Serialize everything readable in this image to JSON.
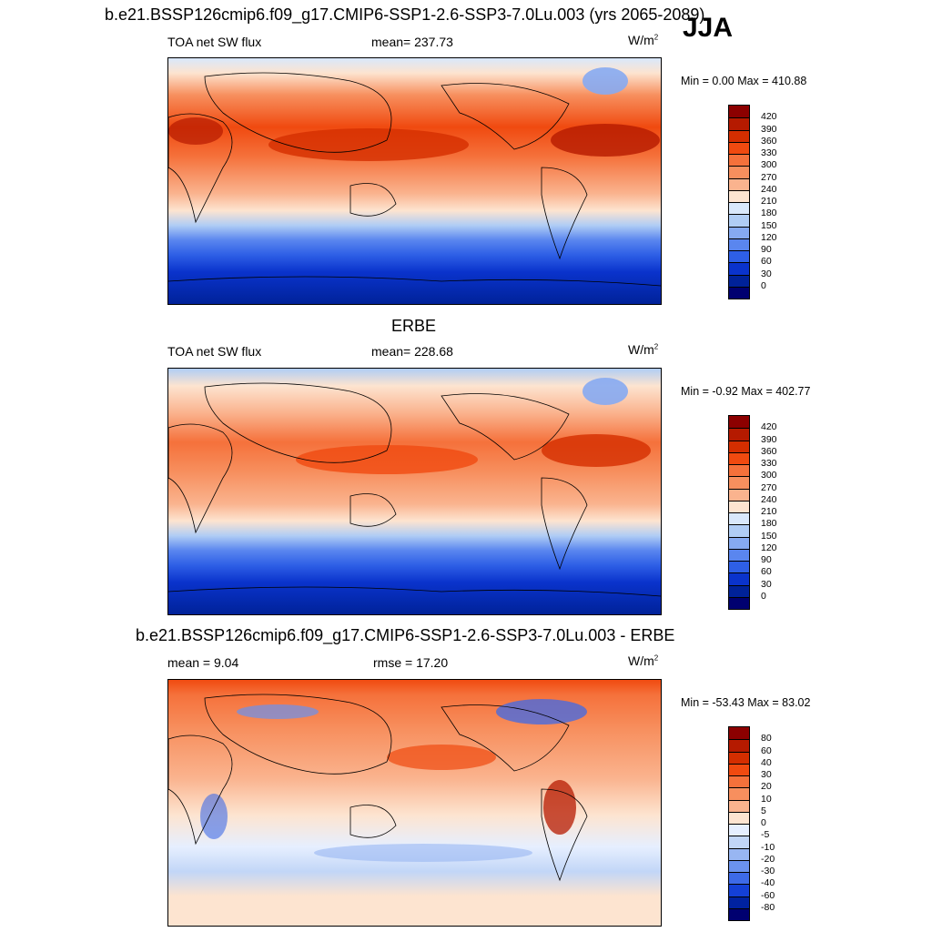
{
  "season": "JJA",
  "panels": [
    {
      "title": "b.e21.BSSP126cmip6.f09_g17.CMIP6-SSP1-2.6-SSP3-7.0Lu.003 (yrs 2065-2089)",
      "left_label": "TOA net SW flux",
      "center_label": "mean= 237.73",
      "units_base": "W/m",
      "units_exp": "2",
      "minmax": "Min =   0.00 Max = 410.88",
      "colorbar": {
        "labels": [
          "420",
          "390",
          "360",
          "330",
          "300",
          "270",
          "240",
          "210",
          "180",
          "150",
          "120",
          "90",
          "60",
          "30",
          "0"
        ],
        "colors": [
          "#8c0000",
          "#b51a00",
          "#d42e00",
          "#f04a10",
          "#f5713b",
          "#f78f5e",
          "#fab38e",
          "#fde4d0",
          "#d9e8fb",
          "#b0cdf5",
          "#86aaf2",
          "#5a86ef",
          "#2e5fe6",
          "#0a33cc",
          "#002299",
          "#000070"
        ]
      }
    },
    {
      "title": "ERBE",
      "left_label": "TOA net SW flux",
      "center_label": "mean= 228.68",
      "units_base": "W/m",
      "units_exp": "2",
      "minmax": "Min =  -0.92 Max = 402.77",
      "colorbar": {
        "labels": [
          "420",
          "390",
          "360",
          "330",
          "300",
          "270",
          "240",
          "210",
          "180",
          "150",
          "120",
          "90",
          "60",
          "30",
          "0"
        ],
        "colors": [
          "#8c0000",
          "#b51a00",
          "#d42e00",
          "#f04a10",
          "#f5713b",
          "#f78f5e",
          "#fab38e",
          "#fde4d0",
          "#d9e8fb",
          "#b0cdf5",
          "#86aaf2",
          "#5a86ef",
          "#2e5fe6",
          "#0a33cc",
          "#002299",
          "#000070"
        ]
      }
    },
    {
      "title": "b.e21.BSSP126cmip6.f09_g17.CMIP6-SSP1-2.6-SSP3-7.0Lu.003 - ERBE",
      "left_label": "mean =   9.04",
      "center_label": "rmse =  17.20",
      "units_base": "W/m",
      "units_exp": "2",
      "minmax": "Min = -53.43 Max =  83.02",
      "colorbar": {
        "labels": [
          "80",
          "60",
          "40",
          "30",
          "20",
          "10",
          "5",
          "0",
          "-5",
          "-10",
          "-20",
          "-30",
          "-40",
          "-60",
          "-80"
        ],
        "colors": [
          "#8c0000",
          "#b51a00",
          "#d42e00",
          "#f04a10",
          "#f5713b",
          "#f78f5e",
          "#fab38e",
          "#fde4d0",
          "#e6efff",
          "#c2d6f7",
          "#98b6f2",
          "#6b92ee",
          "#3d6ae8",
          "#1440d6",
          "#0022a0",
          "#000070"
        ]
      }
    }
  ]
}
